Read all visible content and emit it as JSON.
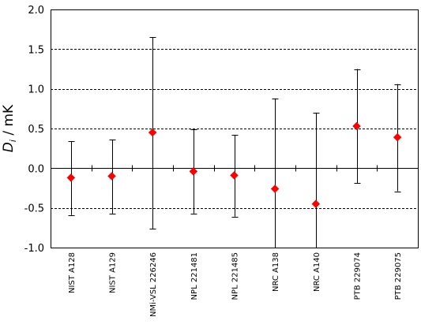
{
  "chart_data": {
    "type": "scatter",
    "categories": [
      "NIST A128",
      "NIST A129",
      "NMi-VSL 226246",
      "NPL 221481",
      "NPL 221485",
      "NRC A138",
      "NRC A140",
      "PTB 229074",
      "PTB 229075"
    ],
    "values": [
      -0.12,
      -0.1,
      0.45,
      -0.04,
      -0.09,
      -0.26,
      -0.45,
      0.53,
      0.39
    ],
    "error_low": [
      -0.59,
      -0.57,
      -0.76,
      -0.57,
      -0.61,
      -1.0,
      -1.0,
      -0.19,
      -0.29
    ],
    "error_high": [
      0.34,
      0.36,
      1.65,
      0.49,
      0.42,
      0.88,
      0.7,
      1.25,
      1.06
    ],
    "yticks": [
      "-1.0",
      "-0.5",
      "0.0",
      "0.5",
      "1.0",
      "1.5",
      "2.0"
    ],
    "ylim": [
      -1.0,
      2.0
    ],
    "ylabel_symbol": "D",
    "ylabel_subscript": "i",
    "ylabel_unit": " / mK",
    "grid": "horizontal dashed",
    "marker_color": "#ff0000",
    "marker_shape": "diamond"
  }
}
